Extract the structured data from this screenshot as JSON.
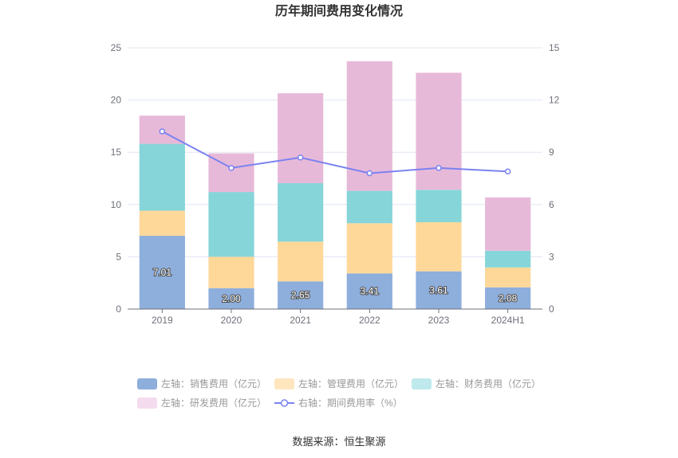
{
  "chart_data": {
    "type": "bar",
    "title": "历年期间费用变化情况",
    "categories": [
      "2019",
      "2020",
      "2021",
      "2022",
      "2023",
      "2024H1"
    ],
    "y_left": {
      "min": 0,
      "max": 25,
      "ticks": [
        0,
        5,
        10,
        15,
        20,
        25
      ]
    },
    "y_right": {
      "min": 0,
      "max": 15,
      "ticks": [
        0,
        3,
        6,
        9,
        12,
        15
      ]
    },
    "series": [
      {
        "name": "左轴：销售费用（亿元）",
        "type": "bar",
        "axis": "left",
        "color": "#8eaedc",
        "values": [
          7.01,
          2.0,
          2.65,
          3.41,
          3.61,
          2.08
        ],
        "labels": [
          "7.01",
          "2.00",
          "2.65",
          "3.41",
          "3.61",
          "2.08"
        ]
      },
      {
        "name": "左轴：管理费用（亿元）",
        "type": "bar",
        "axis": "left",
        "color": "#fed899",
        "values": [
          2.4,
          3.0,
          3.8,
          4.8,
          4.7,
          1.9
        ]
      },
      {
        "name": "左轴：财务费用（亿元）",
        "type": "bar",
        "axis": "left",
        "color": "#86d5d9",
        "values": [
          6.4,
          6.2,
          5.6,
          3.1,
          3.1,
          1.6
        ]
      },
      {
        "name": "左轴：研发费用（亿元）",
        "type": "bar",
        "axis": "left",
        "color": "#e7b9d9",
        "values": [
          2.7,
          3.7,
          8.6,
          12.4,
          11.2,
          5.1
        ]
      },
      {
        "name": "右轴：期间费用率（%）",
        "type": "line",
        "axis": "right",
        "color": "#7b82f0",
        "values": [
          10.2,
          8.1,
          8.7,
          7.8,
          8.1,
          7.9
        ]
      }
    ],
    "legend_position": "bottom",
    "grid": true
  },
  "legend_colors": {
    "sales": "#8eaedc",
    "admin": "#ffe6bf",
    "finance": "#bfe9ec",
    "rd": "#f4dcee",
    "rate": "#7b82f0"
  },
  "footer": {
    "source": "数据来源：恒生聚源"
  }
}
